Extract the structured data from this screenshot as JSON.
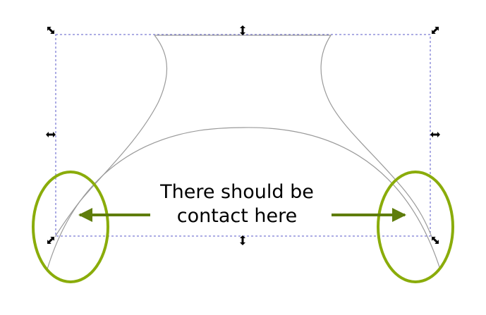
{
  "annotation": {
    "line1": "There should be",
    "line2": "contact here"
  },
  "colors": {
    "highlight": "#8aac0a",
    "arrow": "#5f7d0c",
    "path_stroke": "#9a9a9a",
    "selection_box": "#5a5ac8",
    "handle": "#000000"
  },
  "icons": {
    "selection_handles": [
      "scale-handle-nw",
      "scale-handle-n",
      "scale-handle-ne",
      "scale-handle-w",
      "scale-handle-e",
      "scale-handle-sw",
      "scale-handle-s",
      "scale-handle-se"
    ]
  }
}
